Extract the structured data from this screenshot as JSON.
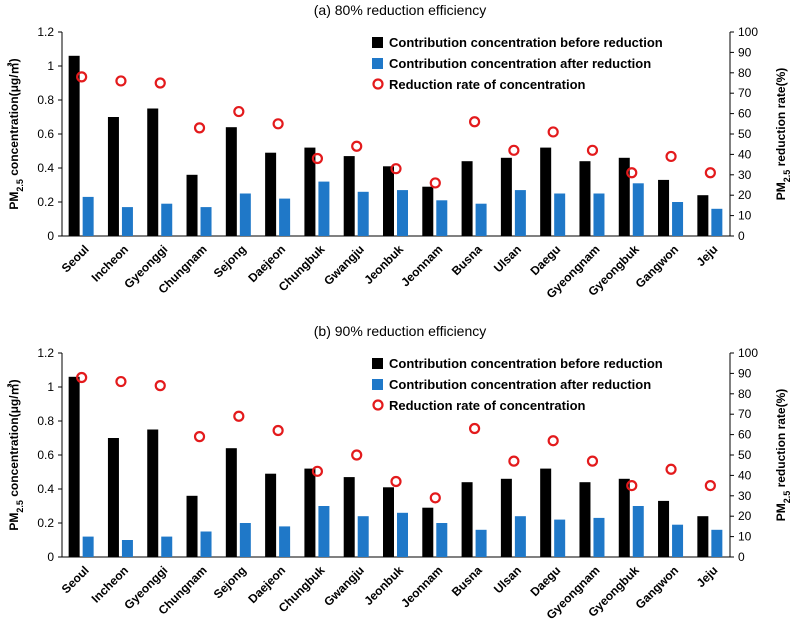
{
  "chart_data": [
    {
      "type": "bar",
      "title": "(a) 80% reduction efficiency",
      "categories": [
        "Seoul",
        "Incheon",
        "Gyeonggi",
        "Chungnam",
        "Sejong",
        "Daejeon",
        "Chungbuk",
        "Gwangju",
        "Jeonbuk",
        "Jeonnam",
        "Busna",
        "Ulsan",
        "Daegu",
        "Gyeongnam",
        "Gyeongbuk",
        "Gangwon",
        "Jeju"
      ],
      "ylabel": "PM2.5 concentration(μg/㎥)",
      "ylabel_main": "PM",
      "ylabel_sub": "2.5",
      "ylabel_rest": " concentration(μg/㎥)",
      "y2label": "PM2.5 reduction rate(%)",
      "y2label_main": "PM",
      "y2label_sub": "2.5",
      "y2label_rest": " reduction rate(%)",
      "ylim": [
        0,
        1.2
      ],
      "yticks": [
        "0",
        "0.2",
        "0.4",
        "0.6",
        "0.8",
        "1",
        "1.2"
      ],
      "y2lim": [
        0,
        100
      ],
      "y2ticks": [
        "0",
        "10",
        "20",
        "30",
        "40",
        "50",
        "60",
        "70",
        "80",
        "90",
        "100"
      ],
      "legend_position": "top-right",
      "series": [
        {
          "name": "Contribution concentration before reduction",
          "kind": "bar",
          "color": "#000000",
          "values": [
            1.06,
            0.7,
            0.75,
            0.36,
            0.64,
            0.49,
            0.52,
            0.47,
            0.41,
            0.29,
            0.44,
            0.46,
            0.52,
            0.44,
            0.46,
            0.33,
            0.24
          ]
        },
        {
          "name": "Contribution concentration after reduction",
          "kind": "bar",
          "color": "#1f78c8",
          "values": [
            0.23,
            0.17,
            0.19,
            0.17,
            0.25,
            0.22,
            0.32,
            0.26,
            0.27,
            0.21,
            0.19,
            0.27,
            0.25,
            0.25,
            0.31,
            0.2,
            0.16
          ]
        },
        {
          "name": "Reduction rate of concentration",
          "kind": "marker",
          "axis": "right",
          "color": "#e31a1c",
          "values": [
            78,
            76,
            75,
            53,
            61,
            55,
            38,
            44,
            33,
            26,
            56,
            42,
            51,
            42,
            31,
            39,
            31
          ]
        }
      ]
    },
    {
      "type": "bar",
      "title": "(b) 90% reduction efficiency",
      "categories": [
        "Seoul",
        "Incheon",
        "Gyeonggi",
        "Chungnam",
        "Sejong",
        "Daejeon",
        "Chungbuk",
        "Gwangju",
        "Jeonbuk",
        "Jeonnam",
        "Busna",
        "Ulsan",
        "Daegu",
        "Gyeongnam",
        "Gyeongbuk",
        "Gangwon",
        "Jeju"
      ],
      "ylabel": "PM2.5 concentration(μg/㎥)",
      "ylabel_main": "PM",
      "ylabel_sub": "2.5",
      "ylabel_rest": " concentration(μg/㎥)",
      "y2label": "PM2.5 reduction rate(%)",
      "y2label_main": "PM",
      "y2label_sub": "2.5",
      "y2label_rest": " reduction rate(%)",
      "ylim": [
        0,
        1.2
      ],
      "yticks": [
        "0",
        "0.2",
        "0.4",
        "0.6",
        "0.8",
        "1",
        "1.2"
      ],
      "y2lim": [
        0,
        100
      ],
      "y2ticks": [
        "0",
        "10",
        "20",
        "30",
        "40",
        "50",
        "60",
        "70",
        "80",
        "90",
        "100"
      ],
      "legend_position": "top-right",
      "series": [
        {
          "name": "Contribution concentration before reduction",
          "kind": "bar",
          "color": "#000000",
          "values": [
            1.06,
            0.7,
            0.75,
            0.36,
            0.64,
            0.49,
            0.52,
            0.47,
            0.41,
            0.29,
            0.44,
            0.46,
            0.52,
            0.44,
            0.46,
            0.33,
            0.24
          ]
        },
        {
          "name": "Contribution concentration after reduction",
          "kind": "bar",
          "color": "#1f78c8",
          "values": [
            0.12,
            0.1,
            0.12,
            0.15,
            0.2,
            0.18,
            0.3,
            0.24,
            0.26,
            0.2,
            0.16,
            0.24,
            0.22,
            0.23,
            0.3,
            0.19,
            0.16
          ]
        },
        {
          "name": "Reduction rate of concentration",
          "kind": "marker",
          "axis": "right",
          "color": "#e31a1c",
          "values": [
            88,
            86,
            84,
            59,
            69,
            62,
            42,
            50,
            37,
            29,
            63,
            47,
            57,
            47,
            35,
            43,
            35
          ]
        }
      ]
    }
  ]
}
